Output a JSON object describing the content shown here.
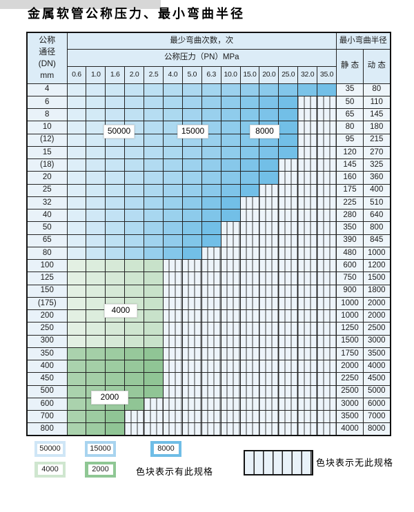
{
  "title": "金属软管公称压力、最小弯曲半径",
  "table": {
    "dn_header_lines": [
      "公称",
      "通径",
      "(DN)",
      "mm"
    ],
    "bend_times_header": "最少弯曲次数，次",
    "pressure_header": "公称压力（PN）MPa",
    "radius_header": "最小弯曲半径",
    "static_header": "静 态",
    "dynamic_header": "动 态",
    "pressure_columns": [
      "0.6",
      "1.0",
      "1.6",
      "2.0",
      "2.5",
      "4.0",
      "5.0",
      "6.3",
      "10.0",
      "15.0",
      "20.0",
      "25.0",
      "32.0",
      "35.0"
    ],
    "rows": [
      {
        "dn": "4",
        "zone": "blue",
        "colored_count": 14,
        "colored_through": "35.0",
        "static": "35",
        "dynamic": "80"
      },
      {
        "dn": "6",
        "zone": "blue",
        "colored_count": 12,
        "colored_through": "25.0",
        "static": "50",
        "dynamic": "110"
      },
      {
        "dn": "8",
        "zone": "blue",
        "colored_count": 12,
        "colored_through": "25.0",
        "static": "65",
        "dynamic": "145"
      },
      {
        "dn": "10",
        "zone": "blue",
        "colored_count": 12,
        "colored_through": "25.0",
        "static": "80",
        "dynamic": "180"
      },
      {
        "dn": "(12)",
        "zone": "blue",
        "colored_count": 12,
        "colored_through": "25.0",
        "static": "95",
        "dynamic": "215"
      },
      {
        "dn": "15",
        "zone": "blue",
        "colored_count": 12,
        "colored_through": "25.0",
        "static": "120",
        "dynamic": "270"
      },
      {
        "dn": "(18)",
        "zone": "blue",
        "colored_count": 11,
        "colored_through": "20.0",
        "static": "145",
        "dynamic": "325"
      },
      {
        "dn": "20",
        "zone": "blue",
        "colored_count": 11,
        "colored_through": "20.0",
        "static": "160",
        "dynamic": "360"
      },
      {
        "dn": "25",
        "zone": "blue",
        "colored_count": 10,
        "colored_through": "15.0",
        "static": "175",
        "dynamic": "400"
      },
      {
        "dn": "32",
        "zone": "blue",
        "colored_count": 9,
        "colored_through": "10.0",
        "static": "225",
        "dynamic": "510"
      },
      {
        "dn": "40",
        "zone": "blue",
        "colored_count": 9,
        "colored_through": "10.0",
        "static": "280",
        "dynamic": "640"
      },
      {
        "dn": "50",
        "zone": "blue",
        "colored_count": 8,
        "colored_through": "6.3",
        "static": "350",
        "dynamic": "800"
      },
      {
        "dn": "65",
        "zone": "blue",
        "colored_count": 8,
        "colored_through": "6.3",
        "static": "390",
        "dynamic": "845"
      },
      {
        "dn": "80",
        "zone": "blue",
        "colored_count": 7,
        "colored_through": "5.0",
        "static": "480",
        "dynamic": "1000"
      },
      {
        "dn": "100",
        "zone": "green_light",
        "colored_count": 5,
        "colored_through": "2.5",
        "static": "600",
        "dynamic": "1200"
      },
      {
        "dn": "125",
        "zone": "green_light",
        "colored_count": 5,
        "colored_through": "2.5",
        "static": "750",
        "dynamic": "1500"
      },
      {
        "dn": "150",
        "zone": "green_light",
        "colored_count": 5,
        "colored_through": "2.5",
        "static": "900",
        "dynamic": "1800"
      },
      {
        "dn": "(175)",
        "zone": "green_light",
        "colored_count": 5,
        "colored_through": "2.5",
        "static": "1000",
        "dynamic": "2000"
      },
      {
        "dn": "200",
        "zone": "green_light",
        "colored_count": 5,
        "colored_through": "2.5",
        "static": "1000",
        "dynamic": "2000"
      },
      {
        "dn": "250",
        "zone": "green_light",
        "colored_count": 5,
        "colored_through": "2.5",
        "static": "1250",
        "dynamic": "2500"
      },
      {
        "dn": "300",
        "zone": "green_light",
        "colored_count": 5,
        "colored_through": "2.5",
        "static": "1500",
        "dynamic": "3000"
      },
      {
        "dn": "350",
        "zone": "green_dark",
        "colored_count": 5,
        "colored_through": "2.5",
        "static": "1750",
        "dynamic": "3500"
      },
      {
        "dn": "400",
        "zone": "green_dark",
        "colored_count": 5,
        "colored_through": "2.5",
        "static": "2000",
        "dynamic": "4000"
      },
      {
        "dn": "450",
        "zone": "green_dark",
        "colored_count": 5,
        "colored_through": "2.5",
        "static": "2250",
        "dynamic": "4500"
      },
      {
        "dn": "500",
        "zone": "green_dark",
        "colored_count": 5,
        "colored_through": "2.5",
        "static": "2500",
        "dynamic": "5000"
      },
      {
        "dn": "600",
        "zone": "green_dark",
        "colored_count": 4,
        "colored_through": "2.0",
        "static": "3000",
        "dynamic": "6000"
      },
      {
        "dn": "700",
        "zone": "green_dark",
        "colored_count": 3,
        "colored_through": "1.6",
        "static": "3500",
        "dynamic": "7000"
      },
      {
        "dn": "800",
        "zone": "green_dark",
        "colored_count": 3,
        "colored_through": "1.6",
        "static": "4000",
        "dynamic": "8000"
      }
    ]
  },
  "zone_labels": [
    {
      "text": "50000"
    },
    {
      "text": "15000"
    },
    {
      "text": "8000"
    },
    {
      "text": "4000"
    },
    {
      "text": "2000"
    }
  ],
  "legend": {
    "items": [
      {
        "value": "50000",
        "color": "#cfe6f6"
      },
      {
        "value": "15000",
        "color": "#a8d4ef"
      },
      {
        "value": "8000",
        "color": "#6fbde6"
      },
      {
        "value": "4000",
        "color": "#cfe6cf"
      },
      {
        "value": "2000",
        "color": "#8fc794"
      }
    ],
    "available_label": "色块表示有此规格",
    "unavailable_label": "色块表示无此规格"
  },
  "colors": {
    "blue_start": "#ddeef8",
    "blue_end": "#72bfe7",
    "green_light_start": "#e3f0e3",
    "green_light_end": "#c8e2ca",
    "green_dark_start": "#aad2ad",
    "green_dark_end": "#90c595",
    "hatch_bg": "#edf4fa",
    "header_bg": "#dcecf7"
  }
}
